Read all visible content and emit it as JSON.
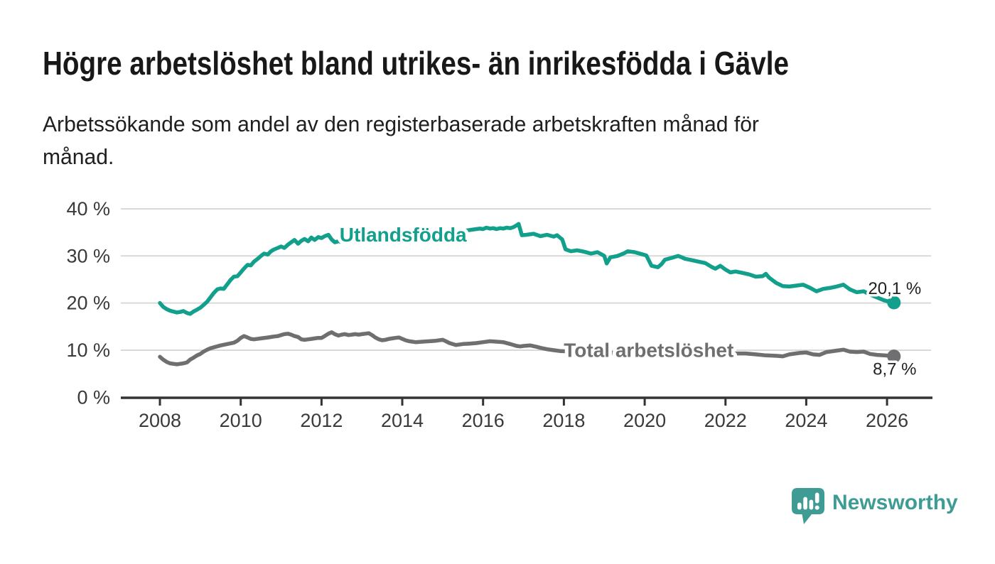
{
  "header": {
    "title": "Högre arbetslöshet bland utrikes- än inrikesfödda i Gävle",
    "subtitle_line1": "Arbetssökande som andel av den registerbaserade arbetskraften månad för",
    "subtitle_line2": "månad."
  },
  "footer": {
    "brand": "Newsworthy"
  },
  "colors": {
    "teal": "#12a08d",
    "gray": "#6f6f72",
    "grid": "#d9d9d9",
    "axis": "#333333",
    "tick_text": "#3a3a3a",
    "logo_teal": "#3f9c94"
  },
  "chart_data": {
    "type": "line",
    "title": "Högre arbetslöshet bland utrikes- än inrikesfödda i Gävle",
    "subtitle": "Arbetssökande som andel av den registerbaserade arbetskraften månad för månad.",
    "xlabel": "",
    "ylabel": "",
    "unit": "%",
    "grid": true,
    "legend": "inline-labels",
    "xlim": [
      2007.0,
      2027.1
    ],
    "ylim": [
      0,
      40
    ],
    "x_ticks": [
      2008,
      2010,
      2012,
      2014,
      2016,
      2018,
      2020,
      2022,
      2024,
      2026
    ],
    "y_ticks": [
      {
        "value": 0,
        "label": "0 %"
      },
      {
        "value": 10,
        "label": "10 %"
      },
      {
        "value": 20,
        "label": "20 %"
      },
      {
        "value": 30,
        "label": "30 %"
      },
      {
        "value": 40,
        "label": "40 %"
      }
    ],
    "series": [
      {
        "name": "Utlandsfödda",
        "color": "#12a08d",
        "end_label": "20,1 %",
        "end_value": 20.1,
        "end_label_position": "above",
        "label_anchor": {
          "x": 2014.02,
          "y": 34.6
        },
        "points": [
          [
            2008.0,
            20.0
          ],
          [
            2008.08,
            19.2
          ],
          [
            2008.17,
            18.7
          ],
          [
            2008.25,
            18.4
          ],
          [
            2008.33,
            18.2
          ],
          [
            2008.42,
            18.0
          ],
          [
            2008.5,
            18.1
          ],
          [
            2008.58,
            18.3
          ],
          [
            2008.67,
            17.9
          ],
          [
            2008.75,
            17.7
          ],
          [
            2008.83,
            18.2
          ],
          [
            2008.92,
            18.6
          ],
          [
            2009.0,
            19.0
          ],
          [
            2009.08,
            19.6
          ],
          [
            2009.17,
            20.3
          ],
          [
            2009.25,
            21.2
          ],
          [
            2009.33,
            22.1
          ],
          [
            2009.42,
            22.9
          ],
          [
            2009.5,
            23.1
          ],
          [
            2009.58,
            23.0
          ],
          [
            2009.67,
            24.0
          ],
          [
            2009.75,
            24.9
          ],
          [
            2009.83,
            25.6
          ],
          [
            2009.92,
            25.7
          ],
          [
            2010.0,
            26.5
          ],
          [
            2010.08,
            27.3
          ],
          [
            2010.17,
            28.1
          ],
          [
            2010.25,
            28.0
          ],
          [
            2010.33,
            28.8
          ],
          [
            2010.42,
            29.4
          ],
          [
            2010.5,
            30.0
          ],
          [
            2010.58,
            30.5
          ],
          [
            2010.67,
            30.3
          ],
          [
            2010.75,
            31.0
          ],
          [
            2010.83,
            31.4
          ],
          [
            2010.92,
            31.7
          ],
          [
            2011.0,
            32.0
          ],
          [
            2011.08,
            31.7
          ],
          [
            2011.17,
            32.4
          ],
          [
            2011.25,
            32.9
          ],
          [
            2011.33,
            33.4
          ],
          [
            2011.42,
            32.6
          ],
          [
            2011.5,
            33.2
          ],
          [
            2011.58,
            33.6
          ],
          [
            2011.67,
            33.1
          ],
          [
            2011.75,
            33.9
          ],
          [
            2011.83,
            33.4
          ],
          [
            2011.92,
            34.0
          ],
          [
            2012.0,
            33.8
          ],
          [
            2012.08,
            34.2
          ],
          [
            2012.17,
            34.5
          ],
          [
            2012.25,
            33.5
          ],
          [
            2012.33,
            32.9
          ],
          [
            2012.42,
            33.1
          ],
          [
            2012.5,
            33.0
          ],
          [
            2012.67,
            33.3
          ],
          [
            2012.83,
            33.2
          ],
          [
            2013.0,
            33.5
          ],
          [
            2013.17,
            33.7
          ],
          [
            2013.33,
            33.5
          ],
          [
            2013.5,
            33.8
          ],
          [
            2013.67,
            34.0
          ],
          [
            2013.83,
            33.9
          ],
          [
            2014.0,
            34.2
          ],
          [
            2014.17,
            34.4
          ],
          [
            2014.33,
            34.3
          ],
          [
            2014.5,
            34.5
          ],
          [
            2014.67,
            34.7
          ],
          [
            2014.83,
            34.6
          ],
          [
            2015.0,
            34.9
          ],
          [
            2015.17,
            35.1
          ],
          [
            2015.33,
            35.0
          ],
          [
            2015.5,
            35.3
          ],
          [
            2015.67,
            35.5
          ],
          [
            2015.83,
            35.7
          ],
          [
            2015.92,
            35.8
          ],
          [
            2016.0,
            35.7
          ],
          [
            2016.08,
            36.0
          ],
          [
            2016.17,
            35.8
          ],
          [
            2016.25,
            35.9
          ],
          [
            2016.33,
            35.7
          ],
          [
            2016.42,
            35.9
          ],
          [
            2016.5,
            35.8
          ],
          [
            2016.58,
            36.0
          ],
          [
            2016.67,
            35.9
          ],
          [
            2016.75,
            36.1
          ],
          [
            2016.83,
            36.5
          ],
          [
            2016.88,
            36.8
          ],
          [
            2016.96,
            34.4
          ],
          [
            2017.08,
            34.5
          ],
          [
            2017.25,
            34.7
          ],
          [
            2017.42,
            34.2
          ],
          [
            2017.58,
            34.5
          ],
          [
            2017.75,
            34.1
          ],
          [
            2017.83,
            34.4
          ],
          [
            2017.96,
            33.5
          ],
          [
            2018.04,
            31.4
          ],
          [
            2018.17,
            31.0
          ],
          [
            2018.33,
            31.2
          ],
          [
            2018.5,
            30.9
          ],
          [
            2018.67,
            30.5
          ],
          [
            2018.83,
            30.8
          ],
          [
            2018.92,
            30.4
          ],
          [
            2019.0,
            30.0
          ],
          [
            2019.06,
            28.4
          ],
          [
            2019.15,
            29.7
          ],
          [
            2019.33,
            30.0
          ],
          [
            2019.5,
            30.6
          ],
          [
            2019.58,
            31.0
          ],
          [
            2019.75,
            30.8
          ],
          [
            2019.92,
            30.4
          ],
          [
            2020.04,
            30.1
          ],
          [
            2020.17,
            27.9
          ],
          [
            2020.33,
            27.6
          ],
          [
            2020.42,
            28.3
          ],
          [
            2020.5,
            29.2
          ],
          [
            2020.67,
            29.6
          ],
          [
            2020.83,
            30.0
          ],
          [
            2020.92,
            29.7
          ],
          [
            2021.0,
            29.4
          ],
          [
            2021.17,
            29.1
          ],
          [
            2021.33,
            28.8
          ],
          [
            2021.5,
            28.5
          ],
          [
            2021.67,
            27.6
          ],
          [
            2021.75,
            27.3
          ],
          [
            2021.87,
            27.9
          ],
          [
            2022.0,
            27.1
          ],
          [
            2022.12,
            26.5
          ],
          [
            2022.25,
            26.7
          ],
          [
            2022.42,
            26.4
          ],
          [
            2022.58,
            26.1
          ],
          [
            2022.75,
            25.6
          ],
          [
            2022.92,
            25.7
          ],
          [
            2023.0,
            26.2
          ],
          [
            2023.08,
            25.4
          ],
          [
            2023.25,
            24.3
          ],
          [
            2023.42,
            23.6
          ],
          [
            2023.58,
            23.5
          ],
          [
            2023.75,
            23.7
          ],
          [
            2023.92,
            23.9
          ],
          [
            2024.08,
            23.3
          ],
          [
            2024.25,
            22.5
          ],
          [
            2024.42,
            23.0
          ],
          [
            2024.58,
            23.2
          ],
          [
            2024.75,
            23.5
          ],
          [
            2024.92,
            23.9
          ],
          [
            2025.08,
            22.9
          ],
          [
            2025.25,
            22.3
          ],
          [
            2025.42,
            22.5
          ],
          [
            2025.58,
            21.8
          ],
          [
            2025.75,
            21.2
          ],
          [
            2025.92,
            20.6
          ],
          [
            2026.08,
            20.2
          ],
          [
            2026.17,
            20.1
          ]
        ]
      },
      {
        "name": "Total arbetslöshet",
        "color": "#6f6f72",
        "end_label": "8,7 %",
        "end_value": 8.7,
        "end_label_position": "below",
        "label_anchor": {
          "x": 2020.1,
          "y": 10.1
        },
        "points": [
          [
            2008.0,
            8.6
          ],
          [
            2008.08,
            8.0
          ],
          [
            2008.17,
            7.5
          ],
          [
            2008.25,
            7.2
          ],
          [
            2008.33,
            7.1
          ],
          [
            2008.42,
            7.0
          ],
          [
            2008.5,
            7.1
          ],
          [
            2008.58,
            7.2
          ],
          [
            2008.67,
            7.4
          ],
          [
            2008.75,
            8.0
          ],
          [
            2008.83,
            8.4
          ],
          [
            2008.92,
            8.9
          ],
          [
            2009.0,
            9.2
          ],
          [
            2009.08,
            9.7
          ],
          [
            2009.17,
            10.1
          ],
          [
            2009.25,
            10.4
          ],
          [
            2009.33,
            10.6
          ],
          [
            2009.5,
            11.0
          ],
          [
            2009.67,
            11.3
          ],
          [
            2009.83,
            11.6
          ],
          [
            2009.92,
            12.0
          ],
          [
            2010.0,
            12.6
          ],
          [
            2010.08,
            13.0
          ],
          [
            2010.17,
            12.7
          ],
          [
            2010.25,
            12.4
          ],
          [
            2010.33,
            12.3
          ],
          [
            2010.5,
            12.5
          ],
          [
            2010.67,
            12.7
          ],
          [
            2010.83,
            12.9
          ],
          [
            2010.92,
            13.0
          ],
          [
            2011.0,
            13.2
          ],
          [
            2011.08,
            13.4
          ],
          [
            2011.17,
            13.5
          ],
          [
            2011.25,
            13.3
          ],
          [
            2011.33,
            13.0
          ],
          [
            2011.42,
            12.8
          ],
          [
            2011.5,
            12.3
          ],
          [
            2011.58,
            12.2
          ],
          [
            2011.67,
            12.3
          ],
          [
            2011.75,
            12.4
          ],
          [
            2011.83,
            12.5
          ],
          [
            2011.92,
            12.6
          ],
          [
            2012.0,
            12.6
          ],
          [
            2012.08,
            13.0
          ],
          [
            2012.17,
            13.5
          ],
          [
            2012.25,
            13.8
          ],
          [
            2012.33,
            13.4
          ],
          [
            2012.42,
            13.1
          ],
          [
            2012.5,
            13.3
          ],
          [
            2012.58,
            13.4
          ],
          [
            2012.67,
            13.2
          ],
          [
            2012.75,
            13.3
          ],
          [
            2012.83,
            13.4
          ],
          [
            2012.92,
            13.3
          ],
          [
            2013.0,
            13.4
          ],
          [
            2013.08,
            13.5
          ],
          [
            2013.17,
            13.6
          ],
          [
            2013.25,
            13.2
          ],
          [
            2013.33,
            12.7
          ],
          [
            2013.42,
            12.3
          ],
          [
            2013.5,
            12.1
          ],
          [
            2013.58,
            12.2
          ],
          [
            2013.67,
            12.4
          ],
          [
            2013.75,
            12.5
          ],
          [
            2013.83,
            12.6
          ],
          [
            2013.92,
            12.7
          ],
          [
            2014.0,
            12.4
          ],
          [
            2014.08,
            12.1
          ],
          [
            2014.17,
            11.9
          ],
          [
            2014.33,
            11.7
          ],
          [
            2014.5,
            11.8
          ],
          [
            2014.67,
            11.9
          ],
          [
            2014.83,
            12.0
          ],
          [
            2015.0,
            12.2
          ],
          [
            2015.08,
            11.9
          ],
          [
            2015.17,
            11.5
          ],
          [
            2015.33,
            11.1
          ],
          [
            2015.5,
            11.3
          ],
          [
            2015.67,
            11.4
          ],
          [
            2015.83,
            11.5
          ],
          [
            2016.0,
            11.7
          ],
          [
            2016.17,
            11.9
          ],
          [
            2016.33,
            11.8
          ],
          [
            2016.5,
            11.7
          ],
          [
            2016.67,
            11.3
          ],
          [
            2016.83,
            10.9
          ],
          [
            2016.92,
            10.8
          ],
          [
            2017.0,
            10.9
          ],
          [
            2017.17,
            11.0
          ],
          [
            2017.33,
            10.7
          ],
          [
            2017.42,
            10.5
          ],
          [
            2017.58,
            10.2
          ],
          [
            2017.75,
            10.0
          ],
          [
            2017.92,
            9.8
          ],
          [
            2018.25,
            9.7
          ],
          [
            2018.58,
            9.6
          ],
          [
            2018.92,
            9.5
          ],
          [
            2019.25,
            9.4
          ],
          [
            2019.58,
            9.4
          ],
          [
            2019.92,
            9.5
          ],
          [
            2020.25,
            9.6
          ],
          [
            2020.58,
            9.6
          ],
          [
            2020.92,
            9.5
          ],
          [
            2021.25,
            9.4
          ],
          [
            2021.58,
            9.4
          ],
          [
            2021.92,
            9.3
          ],
          [
            2022.25,
            9.3
          ],
          [
            2022.5,
            9.3
          ],
          [
            2022.75,
            9.1
          ],
          [
            2023.0,
            8.9
          ],
          [
            2023.25,
            8.8
          ],
          [
            2023.42,
            8.7
          ],
          [
            2023.58,
            9.1
          ],
          [
            2023.83,
            9.4
          ],
          [
            2024.0,
            9.5
          ],
          [
            2024.17,
            9.1
          ],
          [
            2024.33,
            9.0
          ],
          [
            2024.5,
            9.6
          ],
          [
            2024.75,
            9.9
          ],
          [
            2024.92,
            10.1
          ],
          [
            2025.08,
            9.7
          ],
          [
            2025.25,
            9.6
          ],
          [
            2025.42,
            9.7
          ],
          [
            2025.58,
            9.2
          ],
          [
            2025.75,
            9.0
          ],
          [
            2025.92,
            8.9
          ],
          [
            2026.08,
            8.8
          ],
          [
            2026.17,
            8.7
          ]
        ]
      }
    ]
  }
}
